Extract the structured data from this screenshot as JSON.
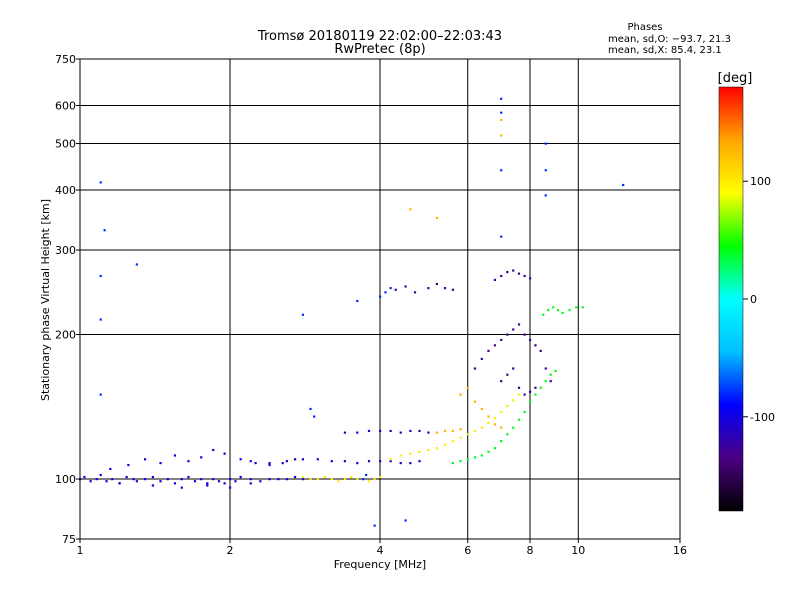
{
  "chart_data": {
    "type": "scatter",
    "title": "Tromsø 20180119 22:02:00–22:03:43",
    "subtitle": "RwPretec (8p)",
    "xlabel": "Frequency [MHz]",
    "ylabel": "Stationary phase Virtual Height [km]",
    "x_scale": "log",
    "y_scale": "log",
    "xlim": [
      1,
      16
    ],
    "ylim": [
      75,
      750
    ],
    "x_ticks": [
      1,
      2,
      4,
      6,
      8,
      10,
      16
    ],
    "y_ticks": [
      75,
      100,
      200,
      300,
      400,
      500,
      600,
      750
    ],
    "grid": true,
    "stats": {
      "heading": "Phases",
      "line1": "mean, sd,O: −93.7, 21.3",
      "line2": "mean, sd,X:  85.4, 23.1"
    },
    "colorbar": {
      "label": "[deg]",
      "ticks": [
        100,
        0,
        -100
      ],
      "range": [
        -180,
        180
      ],
      "colors": [
        "#000000",
        "#4b0082",
        "#0000ff",
        "#00bfff",
        "#00ffff",
        "#00ff00",
        "#ffff00",
        "#ffa500",
        "#ff0000"
      ]
    },
    "series": [
      {
        "phase": -100,
        "points": [
          [
            1.0,
            100
          ],
          [
            1.02,
            101
          ],
          [
            1.05,
            99
          ],
          [
            1.08,
            100
          ],
          [
            1.1,
            102
          ],
          [
            1.13,
            99
          ],
          [
            1.16,
            100
          ],
          [
            1.2,
            98
          ],
          [
            1.24,
            101
          ],
          [
            1.28,
            100
          ],
          [
            1.3,
            99
          ],
          [
            1.35,
            100
          ],
          [
            1.4,
            101
          ],
          [
            1.45,
            99
          ],
          [
            1.5,
            100
          ],
          [
            1.55,
            98
          ],
          [
            1.6,
            100
          ],
          [
            1.65,
            101
          ],
          [
            1.7,
            99
          ],
          [
            1.75,
            100
          ],
          [
            1.8,
            98
          ],
          [
            1.85,
            100
          ],
          [
            1.9,
            99
          ],
          [
            1.95,
            98
          ],
          [
            2.0,
            100
          ],
          [
            2.05,
            99
          ],
          [
            2.1,
            101
          ],
          [
            2.2,
            100
          ],
          [
            2.3,
            99
          ],
          [
            2.4,
            100
          ],
          [
            2.5,
            100
          ],
          [
            2.6,
            100
          ],
          [
            2.7,
            101
          ],
          [
            2.8,
            100
          ],
          [
            1.15,
            105
          ],
          [
            1.25,
            107
          ],
          [
            1.35,
            110
          ],
          [
            1.45,
            108
          ],
          [
            1.55,
            112
          ],
          [
            1.65,
            109
          ],
          [
            1.75,
            111
          ],
          [
            1.85,
            115
          ],
          [
            1.95,
            113
          ],
          [
            2.1,
            110
          ],
          [
            2.25,
            108
          ],
          [
            2.4,
            107
          ],
          [
            2.55,
            108
          ],
          [
            2.7,
            110
          ],
          [
            1.2,
            98
          ],
          [
            1.4,
            97
          ],
          [
            1.6,
            96
          ],
          [
            1.8,
            97
          ],
          [
            2.0,
            96
          ],
          [
            2.2,
            98
          ]
        ]
      },
      {
        "phase": -110,
        "points": [
          [
            2.2,
            109
          ],
          [
            2.4,
            108
          ],
          [
            2.6,
            109
          ],
          [
            2.8,
            110
          ],
          [
            3.0,
            110
          ],
          [
            3.2,
            109
          ],
          [
            3.4,
            109
          ],
          [
            3.6,
            108
          ],
          [
            3.8,
            109
          ],
          [
            4.0,
            109
          ],
          [
            4.2,
            109
          ],
          [
            4.4,
            108
          ],
          [
            4.6,
            108
          ],
          [
            4.8,
            109
          ],
          [
            3.4,
            125
          ],
          [
            3.6,
            125
          ],
          [
            3.8,
            126
          ],
          [
            4.0,
            126
          ],
          [
            4.2,
            126
          ],
          [
            4.4,
            125
          ],
          [
            4.6,
            126
          ],
          [
            4.8,
            126
          ],
          [
            5.0,
            125
          ]
        ]
      },
      {
        "phase": 100,
        "points": [
          [
            2.8,
            101
          ],
          [
            2.9,
            100
          ],
          [
            3.0,
            100
          ],
          [
            3.1,
            101
          ],
          [
            3.2,
            100
          ],
          [
            3.3,
            99
          ],
          [
            3.4,
            100
          ],
          [
            3.5,
            101
          ],
          [
            3.6,
            100
          ],
          [
            3.7,
            100
          ],
          [
            3.8,
            99
          ],
          [
            3.9,
            100
          ],
          [
            4.0,
            101
          ],
          [
            4.2,
            110
          ],
          [
            4.4,
            112
          ],
          [
            4.6,
            113
          ],
          [
            4.8,
            114
          ],
          [
            5.0,
            115
          ],
          [
            5.2,
            116
          ],
          [
            5.4,
            118
          ],
          [
            5.6,
            120
          ],
          [
            5.8,
            122
          ],
          [
            6.0,
            124
          ],
          [
            6.2,
            126
          ],
          [
            6.4,
            128
          ],
          [
            6.6,
            131
          ],
          [
            6.8,
            134
          ],
          [
            7.0,
            138
          ],
          [
            7.2,
            142
          ],
          [
            7.4,
            146
          ],
          [
            7.6,
            150
          ]
        ]
      },
      {
        "phase": 40,
        "points": [
          [
            5.6,
            108
          ],
          [
            5.8,
            109
          ],
          [
            6.0,
            110
          ],
          [
            6.2,
            111
          ],
          [
            6.4,
            112
          ],
          [
            6.6,
            114
          ],
          [
            6.8,
            116
          ],
          [
            7.0,
            120
          ],
          [
            7.2,
            124
          ],
          [
            7.4,
            128
          ],
          [
            7.6,
            133
          ],
          [
            7.8,
            138
          ],
          [
            8.0,
            145
          ],
          [
            8.2,
            150
          ],
          [
            8.4,
            155
          ],
          [
            8.6,
            160
          ],
          [
            8.8,
            165
          ],
          [
            9.0,
            168
          ],
          [
            8.5,
            220
          ],
          [
            8.7,
            225
          ],
          [
            8.9,
            228
          ],
          [
            9.1,
            225
          ],
          [
            9.3,
            222
          ],
          [
            9.6,
            225
          ],
          [
            9.9,
            228
          ],
          [
            10.2,
            228
          ]
        ]
      },
      {
        "phase": -130,
        "points": [
          [
            6.2,
            170
          ],
          [
            6.4,
            178
          ],
          [
            6.6,
            185
          ],
          [
            6.8,
            190
          ],
          [
            7.0,
            195
          ],
          [
            7.2,
            200
          ],
          [
            7.4,
            205
          ],
          [
            7.6,
            210
          ],
          [
            7.8,
            200
          ],
          [
            8.0,
            195
          ],
          [
            8.2,
            190
          ],
          [
            8.4,
            185
          ],
          [
            8.6,
            170
          ],
          [
            8.8,
            160
          ],
          [
            7.0,
            160
          ],
          [
            7.2,
            165
          ],
          [
            7.4,
            170
          ],
          [
            7.6,
            155
          ],
          [
            7.8,
            150
          ],
          [
            8.0,
            152
          ],
          [
            8.2,
            155
          ],
          [
            5.0,
            250
          ],
          [
            5.2,
            255
          ],
          [
            5.4,
            250
          ],
          [
            5.6,
            248
          ],
          [
            4.3,
            248
          ],
          [
            4.5,
            252
          ],
          [
            4.7,
            245
          ],
          [
            6.8,
            260
          ],
          [
            7.0,
            265
          ],
          [
            7.2,
            270
          ],
          [
            7.4,
            272
          ],
          [
            7.6,
            268
          ],
          [
            7.8,
            265
          ],
          [
            8.0,
            262
          ]
        ]
      },
      {
        "phase": 130,
        "points": [
          [
            5.8,
            150
          ],
          [
            6.0,
            155
          ],
          [
            6.2,
            145
          ],
          [
            6.4,
            140
          ],
          [
            6.6,
            135
          ],
          [
            6.8,
            130
          ],
          [
            7.0,
            128
          ],
          [
            5.2,
            125
          ],
          [
            5.4,
            126
          ],
          [
            5.6,
            126
          ],
          [
            5.8,
            127
          ],
          [
            4.6,
            365
          ],
          [
            5.2,
            350
          ],
          [
            7.0,
            560
          ],
          [
            7.0,
            520
          ]
        ]
      },
      {
        "phase": -80,
        "points": [
          [
            1.1,
            415
          ],
          [
            1.1,
            265
          ],
          [
            1.1,
            215
          ],
          [
            1.1,
            150
          ],
          [
            1.12,
            330
          ],
          [
            1.3,
            280
          ],
          [
            2.8,
            220
          ],
          [
            2.9,
            140
          ],
          [
            2.95,
            135
          ],
          [
            3.6,
            235
          ],
          [
            4.0,
            240
          ],
          [
            4.1,
            245
          ],
          [
            4.2,
            250
          ],
          [
            7.0,
            620
          ],
          [
            7.0,
            580
          ],
          [
            7.0,
            440
          ],
          [
            7.0,
            320
          ],
          [
            8.6,
            500
          ],
          [
            8.6,
            440
          ],
          [
            8.6,
            390
          ],
          [
            12.3,
            410
          ],
          [
            3.9,
            80
          ],
          [
            4.5,
            82
          ],
          [
            3.7,
            100
          ],
          [
            3.75,
            102
          ]
        ]
      }
    ]
  }
}
